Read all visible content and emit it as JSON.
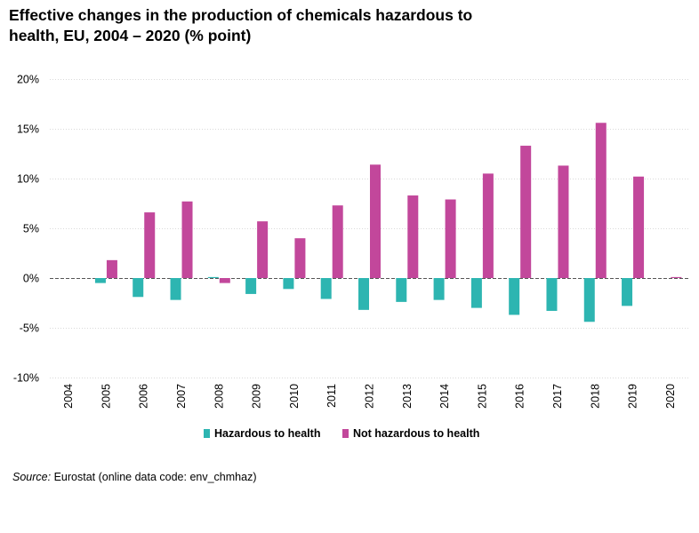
{
  "title_line1": "Effective changes in the production of chemicals hazardous to",
  "title_line2": "health, EU, 2004 – 2020 (% point)",
  "source_label": "Source:",
  "source_text": "Eurostat (online data code: env_chmhaz)",
  "chart_data": {
    "type": "bar",
    "title": "Effective changes in the production of chemicals hazardous to health, EU, 2004 – 2020 (% point)",
    "categories": [
      "2004",
      "2005",
      "2006",
      "2007",
      "2008",
      "2009",
      "2010",
      "2011",
      "2012",
      "2013",
      "2014",
      "2015",
      "2016",
      "2017",
      "2018",
      "2019",
      "2020"
    ],
    "series": [
      {
        "name": "Hazardous to health",
        "color": "#2db5b1",
        "values": [
          0,
          -0.5,
          -1.9,
          -2.2,
          0.1,
          -1.6,
          -1.1,
          -2.1,
          -3.2,
          -2.4,
          -2.2,
          -3.0,
          -3.7,
          -3.3,
          -4.4,
          -2.8,
          0
        ]
      },
      {
        "name": "Not hazardous to health",
        "color": "#c2479b",
        "values": [
          0,
          1.8,
          6.6,
          7.7,
          -0.5,
          5.7,
          4.0,
          7.3,
          11.4,
          8.3,
          7.9,
          10.5,
          13.3,
          11.3,
          15.6,
          10.2,
          0.1
        ]
      }
    ],
    "yticks": [
      "20%",
      "15%",
      "10%",
      "5%",
      "0%",
      "-5%",
      "-10%"
    ],
    "ytick_values": [
      20,
      15,
      10,
      5,
      0,
      -5,
      -10
    ],
    "ylim": [
      -10,
      20
    ],
    "xlabel": "",
    "ylabel": "",
    "grid": true,
    "legend_position": "bottom"
  }
}
